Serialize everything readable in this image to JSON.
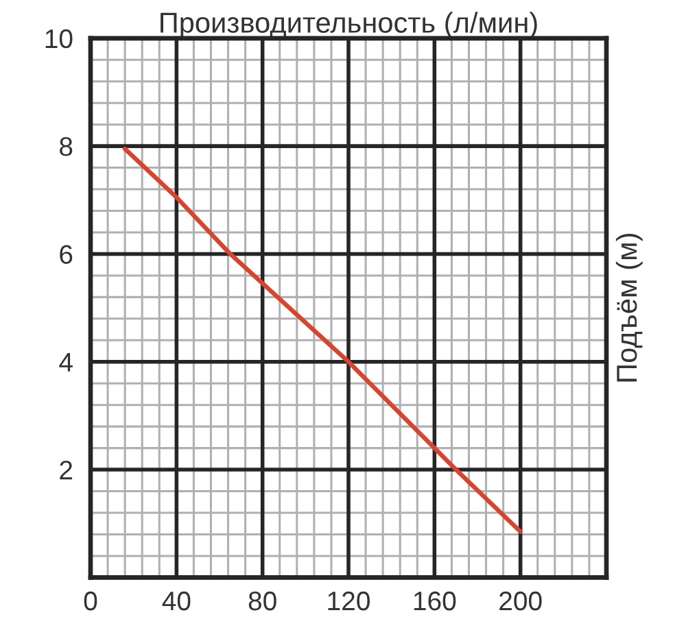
{
  "chart_data": {
    "type": "line",
    "xlabel": "Производительность (л/мин)",
    "ylabel": "Подъём (м)",
    "x": [
      16,
      40,
      65,
      120,
      170,
      200
    ],
    "series": [
      {
        "color": "#d6452f",
        "values": [
          7.95,
          7.05,
          6.0,
          4.0,
          2.0,
          0.85
        ]
      }
    ],
    "xlim": [
      0,
      240
    ],
    "ylim": [
      0,
      10
    ],
    "xticks": [
      0,
      40,
      80,
      120,
      160,
      200
    ],
    "yticks": [
      2,
      4,
      6,
      8,
      10
    ],
    "grid": true
  }
}
